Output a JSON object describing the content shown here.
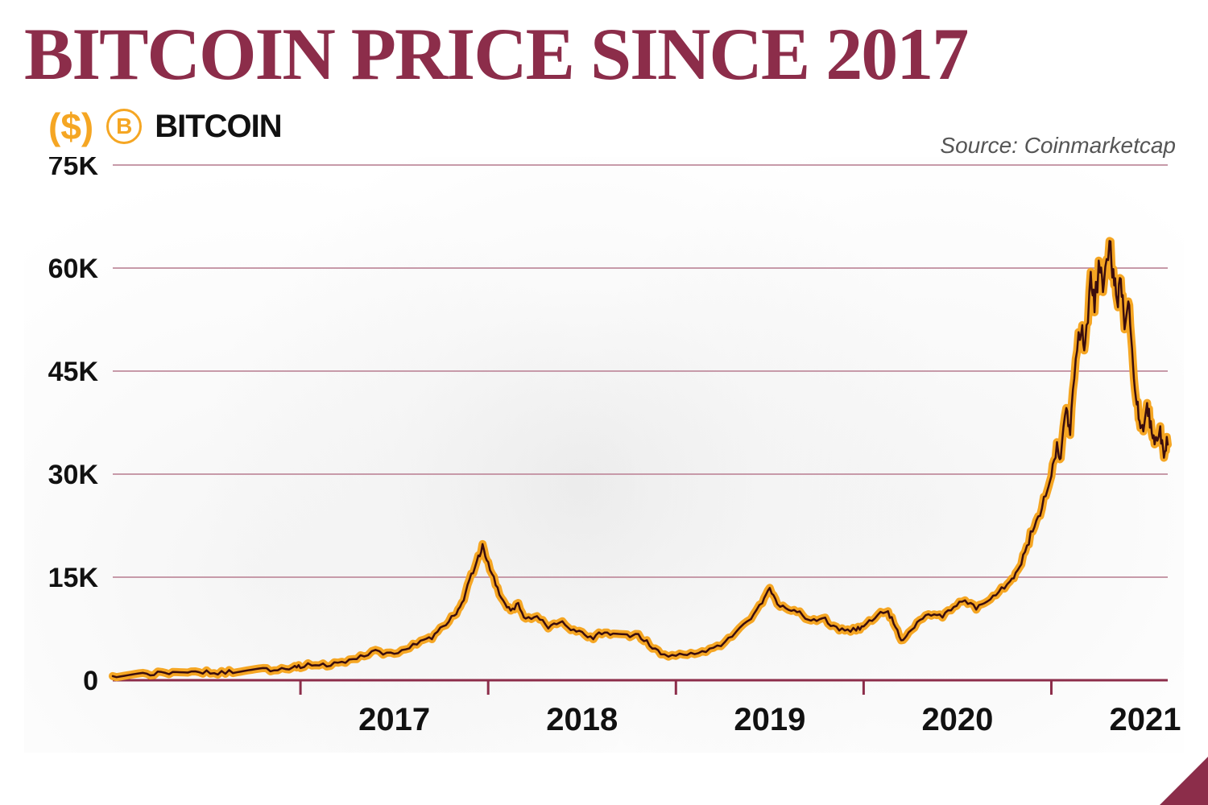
{
  "title": "BITCOIN PRICE SINCE 2017",
  "legend": {
    "currency_symbol": "($)",
    "series_label": "BITCOIN",
    "icon_letter": "B"
  },
  "source": "Source: Coinmarketcap",
  "chart": {
    "type": "line",
    "background_color": "#ffffff",
    "grid_color": "#c79aa9",
    "axis_color": "#8c2d4a",
    "title_color": "#8c2d4a",
    "title_fontsize": 92,
    "accent_color": "#f5a623",
    "line_stroke_color": "#3a0d0d",
    "line_outline_color": "#f5a623",
    "line_width": 2.5,
    "outline_width": 10,
    "ylabel_fontsize": 34,
    "xlabel_fontsize": 40,
    "ylim": [
      0,
      75000
    ],
    "ytick_step": 15000,
    "ytick_labels": [
      "0",
      "15K",
      "30K",
      "45K",
      "60K",
      "75K"
    ],
    "x_categories": [
      "2017",
      "2018",
      "2019",
      "2020",
      "2021"
    ],
    "x_half_year_start": true,
    "series": [
      {
        "t": 0.0,
        "v": 600
      },
      {
        "t": 0.08,
        "v": 750
      },
      {
        "t": 0.16,
        "v": 900
      },
      {
        "t": 0.24,
        "v": 1000
      },
      {
        "t": 0.32,
        "v": 950
      },
      {
        "t": 0.4,
        "v": 1100
      },
      {
        "t": 0.48,
        "v": 1200
      },
      {
        "t": 0.56,
        "v": 1050
      },
      {
        "t": 0.64,
        "v": 1300
      },
      {
        "t": 0.72,
        "v": 1450
      },
      {
        "t": 0.8,
        "v": 1600
      },
      {
        "t": 0.88,
        "v": 1500
      },
      {
        "t": 0.96,
        "v": 1800
      },
      {
        "t": 1.0,
        "v": 2000
      },
      {
        "t": 1.08,
        "v": 2400
      },
      {
        "t": 1.16,
        "v": 2200
      },
      {
        "t": 1.24,
        "v": 2800
      },
      {
        "t": 1.32,
        "v": 3500
      },
      {
        "t": 1.4,
        "v": 4200
      },
      {
        "t": 1.48,
        "v": 3800
      },
      {
        "t": 1.56,
        "v": 4600
      },
      {
        "t": 1.64,
        "v": 5500
      },
      {
        "t": 1.7,
        "v": 6200
      },
      {
        "t": 1.76,
        "v": 7800
      },
      {
        "t": 1.82,
        "v": 9500
      },
      {
        "t": 1.86,
        "v": 11000
      },
      {
        "t": 1.9,
        "v": 14500
      },
      {
        "t": 1.94,
        "v": 17500
      },
      {
        "t": 1.97,
        "v": 19500
      },
      {
        "t": 2.0,
        "v": 17000
      },
      {
        "t": 2.04,
        "v": 14000
      },
      {
        "t": 2.08,
        "v": 11500
      },
      {
        "t": 2.12,
        "v": 10000
      },
      {
        "t": 2.16,
        "v": 11200
      },
      {
        "t": 2.2,
        "v": 8800
      },
      {
        "t": 2.26,
        "v": 9500
      },
      {
        "t": 2.32,
        "v": 7800
      },
      {
        "t": 2.38,
        "v": 8600
      },
      {
        "t": 2.44,
        "v": 7500
      },
      {
        "t": 2.5,
        "v": 6800
      },
      {
        "t": 2.56,
        "v": 6200
      },
      {
        "t": 2.62,
        "v": 7200
      },
      {
        "t": 2.68,
        "v": 6500
      },
      {
        "t": 2.74,
        "v": 6400
      },
      {
        "t": 2.8,
        "v": 6600
      },
      {
        "t": 2.86,
        "v": 5200
      },
      {
        "t": 2.92,
        "v": 3800
      },
      {
        "t": 3.0,
        "v": 3600
      },
      {
        "t": 3.08,
        "v": 3900
      },
      {
        "t": 3.16,
        "v": 4100
      },
      {
        "t": 3.24,
        "v": 5200
      },
      {
        "t": 3.32,
        "v": 7000
      },
      {
        "t": 3.4,
        "v": 8800
      },
      {
        "t": 3.46,
        "v": 11500
      },
      {
        "t": 3.5,
        "v": 13200
      },
      {
        "t": 3.54,
        "v": 11000
      },
      {
        "t": 3.6,
        "v": 10500
      },
      {
        "t": 3.66,
        "v": 9800
      },
      {
        "t": 3.72,
        "v": 8500
      },
      {
        "t": 3.78,
        "v": 9200
      },
      {
        "t": 3.84,
        "v": 7800
      },
      {
        "t": 3.9,
        "v": 7200
      },
      {
        "t": 3.96,
        "v": 7400
      },
      {
        "t": 4.0,
        "v": 7800
      },
      {
        "t": 4.06,
        "v": 9200
      },
      {
        "t": 4.12,
        "v": 10200
      },
      {
        "t": 4.16,
        "v": 8500
      },
      {
        "t": 4.2,
        "v": 5800
      },
      {
        "t": 4.24,
        "v": 6800
      },
      {
        "t": 4.3,
        "v": 8800
      },
      {
        "t": 4.36,
        "v": 9600
      },
      {
        "t": 4.42,
        "v": 9200
      },
      {
        "t": 4.48,
        "v": 10800
      },
      {
        "t": 4.54,
        "v": 11500
      },
      {
        "t": 4.6,
        "v": 10500
      },
      {
        "t": 4.66,
        "v": 11200
      },
      {
        "t": 4.72,
        "v": 12800
      },
      {
        "t": 4.78,
        "v": 14500
      },
      {
        "t": 4.82,
        "v": 16000
      },
      {
        "t": 4.86,
        "v": 18500
      },
      {
        "t": 4.9,
        "v": 22000
      },
      {
        "t": 4.94,
        "v": 24000
      },
      {
        "t": 4.98,
        "v": 28000
      },
      {
        "t": 5.0,
        "v": 29500
      },
      {
        "t": 5.03,
        "v": 34000
      },
      {
        "t": 5.05,
        "v": 32000
      },
      {
        "t": 5.08,
        "v": 40000
      },
      {
        "t": 5.1,
        "v": 36000
      },
      {
        "t": 5.13,
        "v": 47000
      },
      {
        "t": 5.16,
        "v": 52000
      },
      {
        "t": 5.18,
        "v": 48000
      },
      {
        "t": 5.21,
        "v": 58000
      },
      {
        "t": 5.23,
        "v": 55000
      },
      {
        "t": 5.26,
        "v": 61000
      },
      {
        "t": 5.28,
        "v": 57000
      },
      {
        "t": 5.31,
        "v": 63500
      },
      {
        "t": 5.33,
        "v": 59000
      },
      {
        "t": 5.35,
        "v": 55000
      },
      {
        "t": 5.37,
        "v": 58000
      },
      {
        "t": 5.39,
        "v": 52000
      },
      {
        "t": 5.41,
        "v": 56000
      },
      {
        "t": 5.43,
        "v": 48000
      },
      {
        "t": 5.45,
        "v": 42000
      },
      {
        "t": 5.47,
        "v": 38000
      },
      {
        "t": 5.49,
        "v": 36000
      },
      {
        "t": 5.51,
        "v": 40000
      },
      {
        "t": 5.53,
        "v": 37000
      },
      {
        "t": 5.55,
        "v": 34000
      },
      {
        "t": 5.58,
        "v": 36000
      },
      {
        "t": 5.6,
        "v": 33000
      },
      {
        "t": 5.62,
        "v": 35000
      }
    ]
  }
}
